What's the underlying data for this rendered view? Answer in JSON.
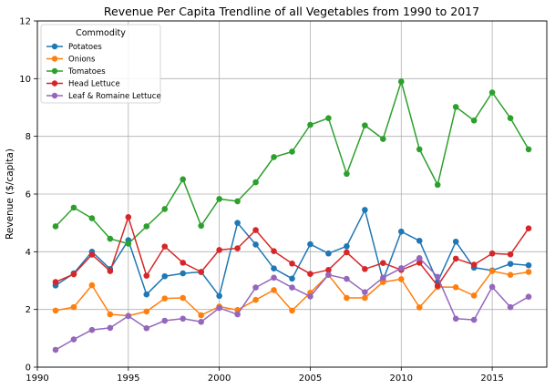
{
  "chart_data": {
    "type": "line",
    "title": "Revenue Per Capita Trendline of all Vegetables from 1990 to 2017",
    "xlabel": "",
    "ylabel": "Revenue ($/capita)",
    "xlim": [
      1990,
      2018
    ],
    "ylim": [
      0,
      12
    ],
    "xticks": [
      1990,
      1995,
      2000,
      2005,
      2010,
      2015
    ],
    "yticks": [
      0,
      2,
      4,
      6,
      8,
      10,
      12
    ],
    "grid": true,
    "legend": {
      "title": "Commodity",
      "position": "top-left"
    },
    "x": [
      1991,
      1992,
      1993,
      1994,
      1995,
      1996,
      1997,
      1998,
      1999,
      2000,
      2001,
      2002,
      2003,
      2004,
      2005,
      2006,
      2007,
      2008,
      2009,
      2010,
      2011,
      2012,
      2013,
      2014,
      2015,
      2016,
      2017
    ],
    "series": [
      {
        "name": "Potatoes",
        "color": "#1f77b4",
        "values": [
          2.83,
          3.25,
          4.0,
          3.4,
          4.4,
          2.52,
          3.15,
          3.25,
          3.3,
          2.47,
          5.0,
          4.25,
          3.42,
          3.07,
          4.26,
          3.94,
          4.19,
          5.45,
          3.01,
          4.7,
          4.38,
          2.95,
          4.35,
          3.45,
          3.35,
          3.58,
          3.53
        ]
      },
      {
        "name": "Onions",
        "color": "#ff7f0e",
        "values": [
          1.96,
          2.08,
          2.84,
          1.83,
          1.78,
          1.93,
          2.38,
          2.4,
          1.8,
          2.1,
          1.98,
          2.33,
          2.67,
          1.96,
          2.58,
          3.2,
          2.4,
          2.4,
          2.95,
          3.05,
          2.07,
          2.78,
          2.77,
          2.48,
          3.33,
          3.2,
          3.3
        ]
      },
      {
        "name": "Tomatoes",
        "color": "#2ca02c",
        "values": [
          4.88,
          5.53,
          5.16,
          4.45,
          4.28,
          4.88,
          5.48,
          6.51,
          4.9,
          5.83,
          5.75,
          6.41,
          7.28,
          7.47,
          8.4,
          8.63,
          6.7,
          8.38,
          7.91,
          9.9,
          7.55,
          6.32,
          9.02,
          8.55,
          9.52,
          8.63,
          7.55
        ]
      },
      {
        "name": "Head Lettuce",
        "color": "#d62728",
        "values": [
          2.95,
          3.22,
          3.9,
          3.33,
          5.2,
          3.17,
          4.18,
          3.62,
          3.3,
          4.06,
          4.12,
          4.75,
          4.02,
          3.59,
          3.23,
          3.37,
          3.98,
          3.4,
          3.61,
          3.37,
          3.62,
          2.82,
          3.76,
          3.55,
          3.94,
          3.91,
          4.81
        ]
      },
      {
        "name": "Leaf & Romaine Lettuce",
        "color": "#9467bd",
        "values": [
          0.6,
          0.96,
          1.29,
          1.36,
          1.77,
          1.35,
          1.61,
          1.68,
          1.57,
          2.05,
          1.83,
          2.76,
          3.1,
          2.76,
          2.45,
          3.2,
          3.06,
          2.6,
          3.1,
          3.43,
          3.78,
          3.13,
          1.68,
          1.64,
          2.78,
          2.08,
          2.44
        ]
      }
    ]
  }
}
